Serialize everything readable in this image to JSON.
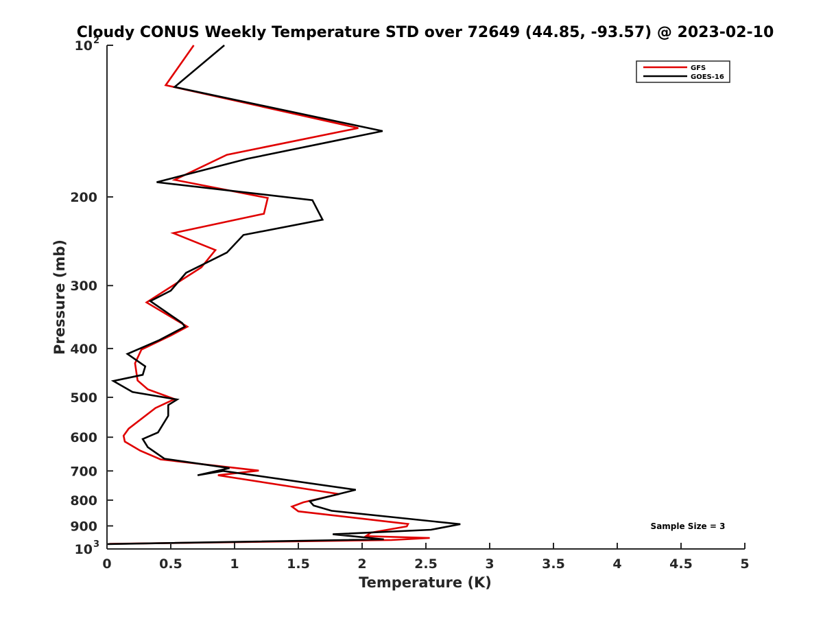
{
  "chart_data": {
    "type": "line",
    "title": "Cloudy CONUS Weekly Temperature STD over 72649 (44.85, -93.57) @ 2023-02-10",
    "xlabel": "Temperature (K)",
    "ylabel": "Pressure (mb)",
    "xlim": [
      0,
      5
    ],
    "ylim": [
      100,
      1000
    ],
    "y_scale": "log",
    "y_reversed": true,
    "grid": false,
    "legend_position": "top-right",
    "x_ticks": [
      {
        "value": 0,
        "label": "0"
      },
      {
        "value": 0.5,
        "label": "0.5"
      },
      {
        "value": 1,
        "label": "1"
      },
      {
        "value": 1.5,
        "label": "1.5"
      },
      {
        "value": 2,
        "label": "2"
      },
      {
        "value": 2.5,
        "label": "2.5"
      },
      {
        "value": 3,
        "label": "3"
      },
      {
        "value": 3.5,
        "label": "3.5"
      },
      {
        "value": 4,
        "label": "4"
      },
      {
        "value": 4.5,
        "label": "4.5"
      },
      {
        "value": 5,
        "label": "5"
      }
    ],
    "y_ticks": [
      {
        "value": 100,
        "label": "10",
        "exp": "2"
      },
      {
        "value": 200,
        "label": "200"
      },
      {
        "value": 300,
        "label": "300"
      },
      {
        "value": 400,
        "label": "400"
      },
      {
        "value": 500,
        "label": "500"
      },
      {
        "value": 600,
        "label": "600"
      },
      {
        "value": 700,
        "label": "700"
      },
      {
        "value": 800,
        "label": "800"
      },
      {
        "value": 900,
        "label": "900"
      },
      {
        "value": 1000,
        "label": "10",
        "exp": "3"
      }
    ],
    "annotation": "Sample Size = 3",
    "series": [
      {
        "name": "GFS",
        "color": "#e00000",
        "points": [
          [
            0.68,
            100
          ],
          [
            0.46,
            120
          ],
          [
            1.97,
            146
          ],
          [
            0.94,
            165
          ],
          [
            0.53,
            185
          ],
          [
            1.26,
            201
          ],
          [
            1.23,
            216
          ],
          [
            0.52,
            236
          ],
          [
            0.85,
            255
          ],
          [
            0.74,
            276
          ],
          [
            0.31,
            324
          ],
          [
            0.63,
            362
          ],
          [
            0.5,
            377
          ],
          [
            0.27,
            402
          ],
          [
            0.22,
            428
          ],
          [
            0.24,
            463
          ],
          [
            0.32,
            482
          ],
          [
            0.53,
            504
          ],
          [
            0.38,
            525
          ],
          [
            0.17,
            577
          ],
          [
            0.13,
            596
          ],
          [
            0.14,
            612
          ],
          [
            0.26,
            638
          ],
          [
            0.42,
            664
          ],
          [
            1.19,
            699
          ],
          [
            0.87,
            714
          ],
          [
            1.82,
            778
          ],
          [
            1.54,
            808
          ],
          [
            1.45,
            824
          ],
          [
            1.5,
            842
          ],
          [
            2.36,
            892
          ],
          [
            2.35,
            902
          ],
          [
            2.07,
            928
          ],
          [
            2.03,
            943
          ],
          [
            2.53,
            951
          ],
          [
            2.23,
            960
          ],
          [
            0.02,
            977
          ]
        ]
      },
      {
        "name": "GOES-16",
        "color": "#000000",
        "points": [
          [
            0.92,
            100
          ],
          [
            0.53,
            121
          ],
          [
            2.16,
            148
          ],
          [
            1.1,
            168
          ],
          [
            0.39,
            187
          ],
          [
            1.61,
            203
          ],
          [
            1.69,
            222
          ],
          [
            1.07,
            238
          ],
          [
            0.94,
            258
          ],
          [
            0.62,
            283
          ],
          [
            0.5,
            307
          ],
          [
            0.34,
            322
          ],
          [
            0.59,
            356
          ],
          [
            0.61,
            362
          ],
          [
            0.41,
            385
          ],
          [
            0.16,
            410
          ],
          [
            0.3,
            434
          ],
          [
            0.28,
            451
          ],
          [
            0.05,
            464
          ],
          [
            0.2,
            488
          ],
          [
            0.55,
            505
          ],
          [
            0.48,
            518
          ],
          [
            0.48,
            544
          ],
          [
            0.4,
            587
          ],
          [
            0.28,
            605
          ],
          [
            0.32,
            628
          ],
          [
            0.45,
            662
          ],
          [
            0.96,
            691
          ],
          [
            0.71,
            714
          ],
          [
            0.91,
            700
          ],
          [
            1.95,
            763
          ],
          [
            1.59,
            804
          ],
          [
            1.62,
            820
          ],
          [
            1.76,
            840
          ],
          [
            2.77,
            893
          ],
          [
            2.54,
            916
          ],
          [
            1.77,
            935
          ],
          [
            2.17,
            957
          ],
          [
            0.0,
            978
          ]
        ]
      }
    ]
  }
}
